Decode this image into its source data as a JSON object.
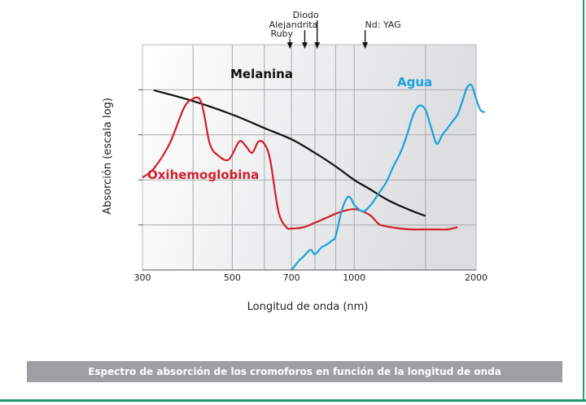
{
  "chart_data": {
    "type": "line",
    "xlabel": "Longitud de onda (nm)",
    "ylabel": "Absorción (escala log)",
    "x_scale": "log",
    "xlim": [
      300,
      2000
    ],
    "ylim": [
      0,
      5
    ],
    "x_ticks": [
      300,
      500,
      700,
      1000,
      2000
    ],
    "grid": true,
    "lasers": [
      {
        "name": "Ruby",
        "x": 694
      },
      {
        "name": "Alejandrita",
        "x": 755
      },
      {
        "name": "Diodo",
        "x": 810
      },
      {
        "name": "Nd: YAG",
        "x": 1064
      }
    ],
    "series": [
      {
        "name": "Melanina",
        "color": "#111111",
        "x": [
          320,
          400,
          500,
          600,
          700,
          800,
          900,
          1000,
          1100,
          1200,
          1300,
          1400,
          1500
        ],
        "y": [
          3.99,
          3.75,
          3.45,
          3.15,
          2.9,
          2.6,
          2.3,
          2.0,
          1.78,
          1.57,
          1.42,
          1.3,
          1.2
        ]
      },
      {
        "name": "Oxihemoglobina",
        "color": "#cf1f2c",
        "x": [
          300,
          320,
          350,
          380,
          400,
          415,
          425,
          440,
          460,
          490,
          520,
          540,
          560,
          580,
          600,
          620,
          650,
          680,
          700,
          750,
          800,
          850,
          900,
          950,
          1000,
          1050,
          1100,
          1150,
          1200,
          1300,
          1400,
          1500,
          1600,
          1700,
          1800
        ],
        "y": [
          2.05,
          2.25,
          2.8,
          3.6,
          3.8,
          3.8,
          3.5,
          2.8,
          2.55,
          2.45,
          2.85,
          2.75,
          2.6,
          2.85,
          2.8,
          2.45,
          1.3,
          0.95,
          0.92,
          0.95,
          1.05,
          1.15,
          1.25,
          1.32,
          1.35,
          1.3,
          1.2,
          1.02,
          0.97,
          0.92,
          0.9,
          0.9,
          0.9,
          0.9,
          0.95
        ]
      },
      {
        "name": "Agua",
        "color": "#1aa2dc",
        "x": [
          700,
          730,
          750,
          780,
          800,
          830,
          850,
          880,
          900,
          930,
          960,
          980,
          1000,
          1050,
          1100,
          1150,
          1200,
          1250,
          1300,
          1350,
          1400,
          1450,
          1500,
          1550,
          1600,
          1650,
          1700,
          1750,
          1800,
          1850,
          1900,
          1950,
          2000,
          2050,
          2100
        ],
        "y": [
          0,
          0.2,
          0.3,
          0.45,
          0.35,
          0.5,
          0.55,
          0.65,
          0.75,
          1.3,
          1.6,
          1.6,
          1.45,
          1.3,
          1.45,
          1.7,
          1.95,
          2.3,
          2.6,
          3.0,
          3.45,
          3.65,
          3.55,
          3.15,
          2.8,
          3.0,
          3.15,
          3.3,
          3.45,
          3.75,
          4.05,
          4.1,
          3.8,
          3.55,
          3.5
        ]
      }
    ]
  }
}
